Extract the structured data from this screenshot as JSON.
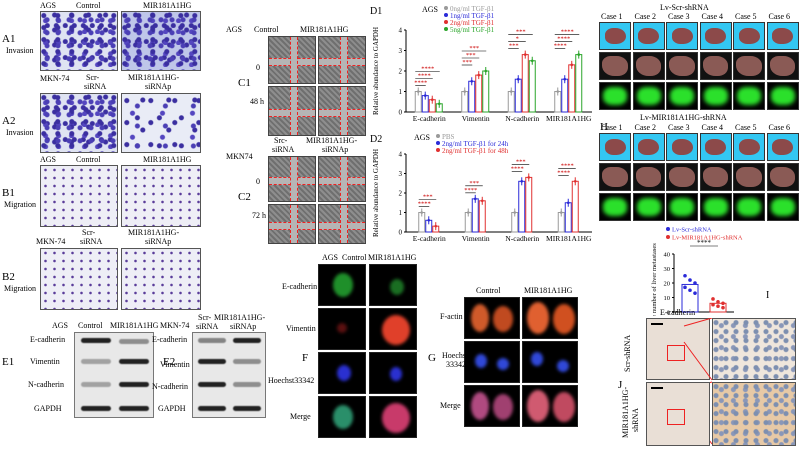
{
  "panelA": {
    "a1": "A1",
    "a1_sub": "Invasion",
    "a2": "A2",
    "a2_sub": "Invasion",
    "ags": "AGS",
    "control": "Control",
    "mir": "MIR181A1HG",
    "mkn74": "MKN-74",
    "scr": "Scr-\nsiRNA",
    "scr_l1": "Scr-",
    "scr_l2": "siRNA",
    "sip_l1": "MIR181A1HG-",
    "sip_l2": "siRNAp"
  },
  "panelB": {
    "b1": "B1",
    "b1_sub": "Migration",
    "b2": "B2",
    "b2_sub": "Migration",
    "ags": "AGS",
    "control": "Control",
    "mir": "MIR181A1HG",
    "mkn74": "MKN-74",
    "scr_l1": "Scr-",
    "scr_l2": "siRNA",
    "sip_l1": "MIR181A1HG-",
    "sip_l2": "siRNAp"
  },
  "panelC": {
    "c1": "C1",
    "c2": "C2",
    "ags": "AGS",
    "control": "Control",
    "mir": "MIR181A1HG",
    "t0": "0",
    "t48": "48 h",
    "t0b": "0",
    "t72": "72 h",
    "mkn74": "MKN74",
    "src_l1": "Src-",
    "src_l2": "siRNA",
    "sip_l1": "MIR181A1HG-",
    "sip_l2": "siRNAp"
  },
  "panelE": {
    "e1": "E1",
    "e2": "E2",
    "ags": "AGS",
    "control": "Control",
    "mir": "MIR181A1HG",
    "mkn": "MKN-74",
    "scr_l1": "Scr-",
    "scr_l2": "siRNA",
    "sip_l1": "MIR181A1HG-",
    "sip_l2": "siRNAp",
    "ecad": "E-cadherin",
    "vim": "Vimentin",
    "ncad": "N-cadherin",
    "gapdh": "GAPDH"
  },
  "panelF": {
    "f": "F",
    "ags": "AGS",
    "control": "Control",
    "mir": "MIR181A1HG",
    "ecad": "E-cadherin",
    "vim": "Vimentin",
    "hoechst": "Hoechst33342",
    "merge": "Merge"
  },
  "panelG": {
    "g": "G",
    "control": "Control",
    "mir": "MIR181A1HG",
    "factin": "F-actin",
    "hoechst_l1": "Hoechst",
    "hoechst_l2": "33342",
    "merge": "Merge"
  },
  "panelH": {
    "h": "H",
    "scr_title": "Lv-Scr-shRNA",
    "mir_title": "Lv-MIR181A1HG-shRNA",
    "cases": [
      "Case 1",
      "Case 2",
      "Case 3",
      "Case 4",
      "Case 5",
      "Case 6"
    ]
  },
  "panelJ": {
    "j": "J",
    "ecad": "E-cadherin",
    "scr": "Scr-shRNA",
    "mir_l1": "MIR181A1HG-",
    "mir_l2": "shRNA"
  },
  "chart_data": [
    {
      "id": "D1",
      "type": "bar",
      "panel_label": "D1",
      "cell_label": "AGS",
      "ylabel": "Relative abundance to GAPDH",
      "ylim": [
        0,
        4
      ],
      "yticks": [
        0,
        1,
        2,
        3,
        4
      ],
      "categories": [
        "E-cadherin",
        "Vimentin",
        "N-cadherin",
        "MIR181A1HG"
      ],
      "series": [
        {
          "name": "0ng/ml TGF-β1",
          "color": "#9a9a9a",
          "values": [
            1.0,
            1.0,
            1.0,
            1.0
          ]
        },
        {
          "name": "1ng/ml TGF-β1",
          "color": "#2a2ad8",
          "values": [
            0.8,
            1.5,
            1.6,
            1.6
          ]
        },
        {
          "name": "2ng/ml TGF-β1",
          "color": "#e03030",
          "values": [
            0.6,
            1.8,
            2.8,
            2.3
          ]
        },
        {
          "name": "5ng/ml TGF-β1",
          "color": "#2aa52a",
          "values": [
            0.4,
            2.0,
            2.5,
            2.8
          ]
        }
      ],
      "significance": [
        "****",
        "****",
        "****",
        "***",
        "***",
        "***",
        "***",
        "*",
        "***",
        "****",
        "****",
        "****"
      ]
    },
    {
      "id": "D2",
      "type": "bar",
      "panel_label": "D2",
      "cell_label": "AGS",
      "ylabel": "Relative abundance to GAPDH",
      "ylim": [
        0,
        4
      ],
      "yticks": [
        0,
        1,
        2,
        3,
        4
      ],
      "categories": [
        "E-cadherin",
        "Vimentin",
        "N-cadherin",
        "MIR181A1HG"
      ],
      "series": [
        {
          "name": "PBS",
          "color": "#9a9a9a",
          "values": [
            1.0,
            1.0,
            1.0,
            1.0
          ]
        },
        {
          "name": "2ng/ml TGF-β1 for 24h",
          "color": "#2a2ad8",
          "values": [
            0.6,
            1.7,
            2.6,
            1.5
          ]
        },
        {
          "name": "2ng/ml TGF-β1 for 48h",
          "color": "#e03030",
          "values": [
            0.3,
            1.6,
            2.8,
            2.6
          ]
        }
      ],
      "significance": [
        "****",
        "***",
        "****",
        "***",
        "****",
        "***",
        "****",
        "****"
      ]
    },
    {
      "id": "I",
      "type": "scatter",
      "panel_label": "I",
      "ylabel": "The number of liver metastases",
      "ylim": [
        0,
        40
      ],
      "yticks": [
        0,
        10,
        20,
        30,
        40
      ],
      "categories": [
        "Lv-Scr-shRNA",
        "Lv-MIR181A1HG-shRNA"
      ],
      "series": [
        {
          "name": "Lv-Scr-shRNA",
          "color": "#2a2ad8",
          "mean": 19,
          "points": [
            25,
            22,
            20,
            17,
            15,
            13
          ]
        },
        {
          "name": "Lv-MIR181A1HG-shRNA",
          "color": "#e03030",
          "mean": 6,
          "points": [
            9,
            7,
            6,
            5,
            4,
            3
          ]
        }
      ],
      "significance": "****"
    }
  ]
}
